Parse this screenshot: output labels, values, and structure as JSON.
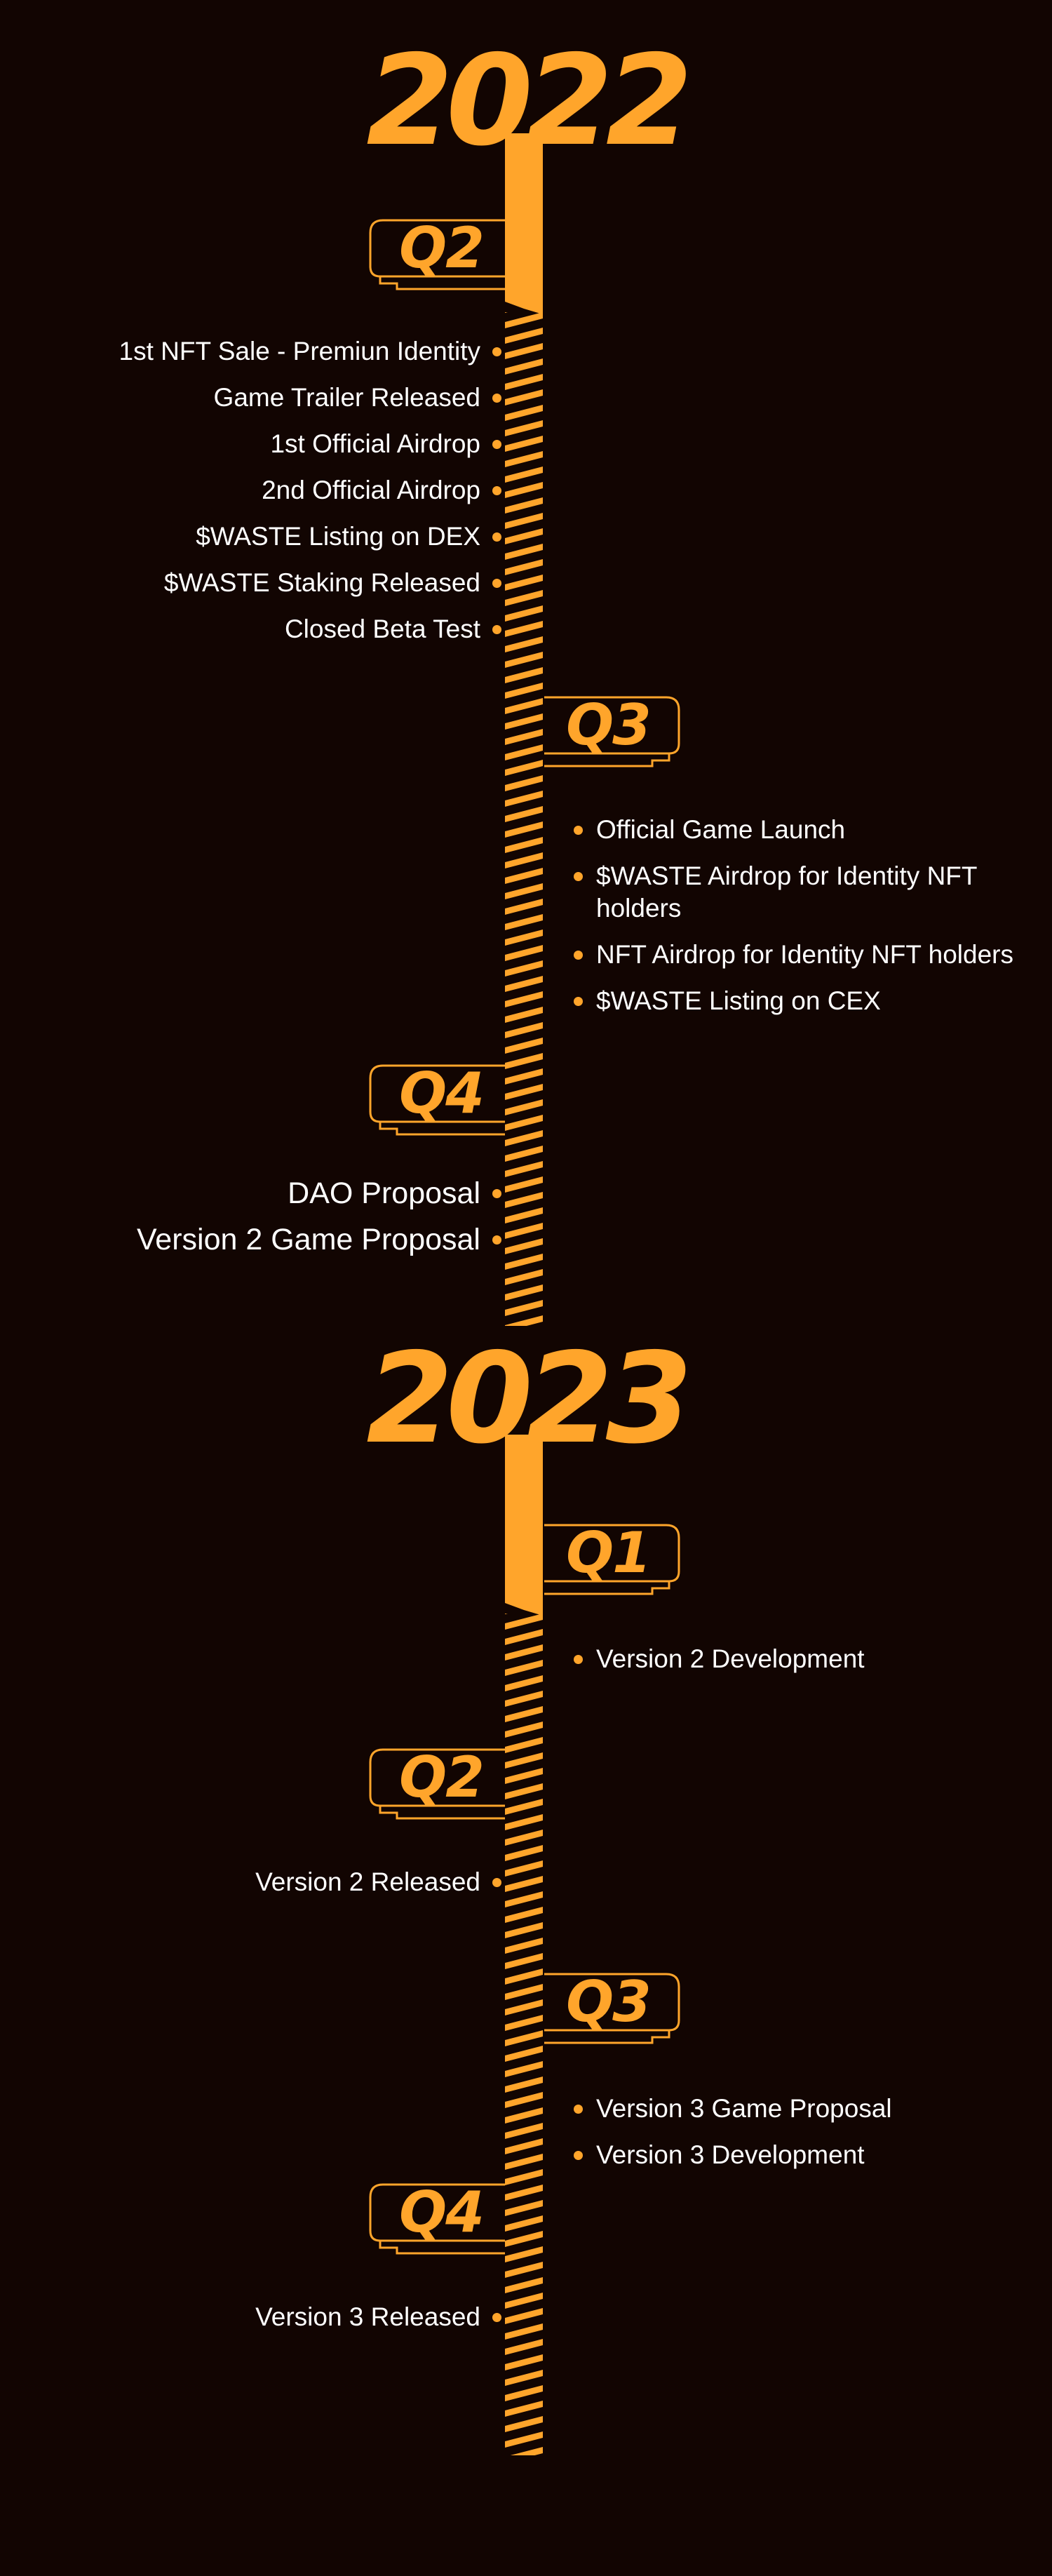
{
  "accent_color": "#ffa52b",
  "background_color": "#120502",
  "text_color": "#ffffff",
  "years": [
    {
      "year": "2022",
      "quarters": [
        {
          "label": "Q2",
          "side": "left",
          "items": [
            "1st NFT Sale - Premiun Identity",
            "Game Trailer Released",
            "1st Official Airdrop",
            "2nd Official Airdrop",
            "$WASTE Listing on DEX",
            "$WASTE Staking Released",
            "Closed Beta Test"
          ]
        },
        {
          "label": "Q3",
          "side": "right",
          "items": [
            "Official Game Launch",
            "$WASTE Airdrop for Identity NFT holders",
            "NFT Airdrop for Identity NFT holders",
            "$WASTE Listing on CEX"
          ]
        },
        {
          "label": "Q4",
          "side": "left",
          "items": [
            "DAO Proposal",
            "Version 2 Game Proposal"
          ]
        }
      ]
    },
    {
      "year": "2023",
      "quarters": [
        {
          "label": "Q1",
          "side": "right",
          "items": [
            "Version 2 Development"
          ]
        },
        {
          "label": "Q2",
          "side": "left",
          "items": [
            "Version 2 Released"
          ]
        },
        {
          "label": "Q3",
          "side": "right",
          "items": [
            "Version 3 Game Proposal",
            "Version 3 Development"
          ]
        },
        {
          "label": "Q4",
          "side": "left",
          "items": [
            "Version 3 Released"
          ]
        }
      ]
    }
  ]
}
